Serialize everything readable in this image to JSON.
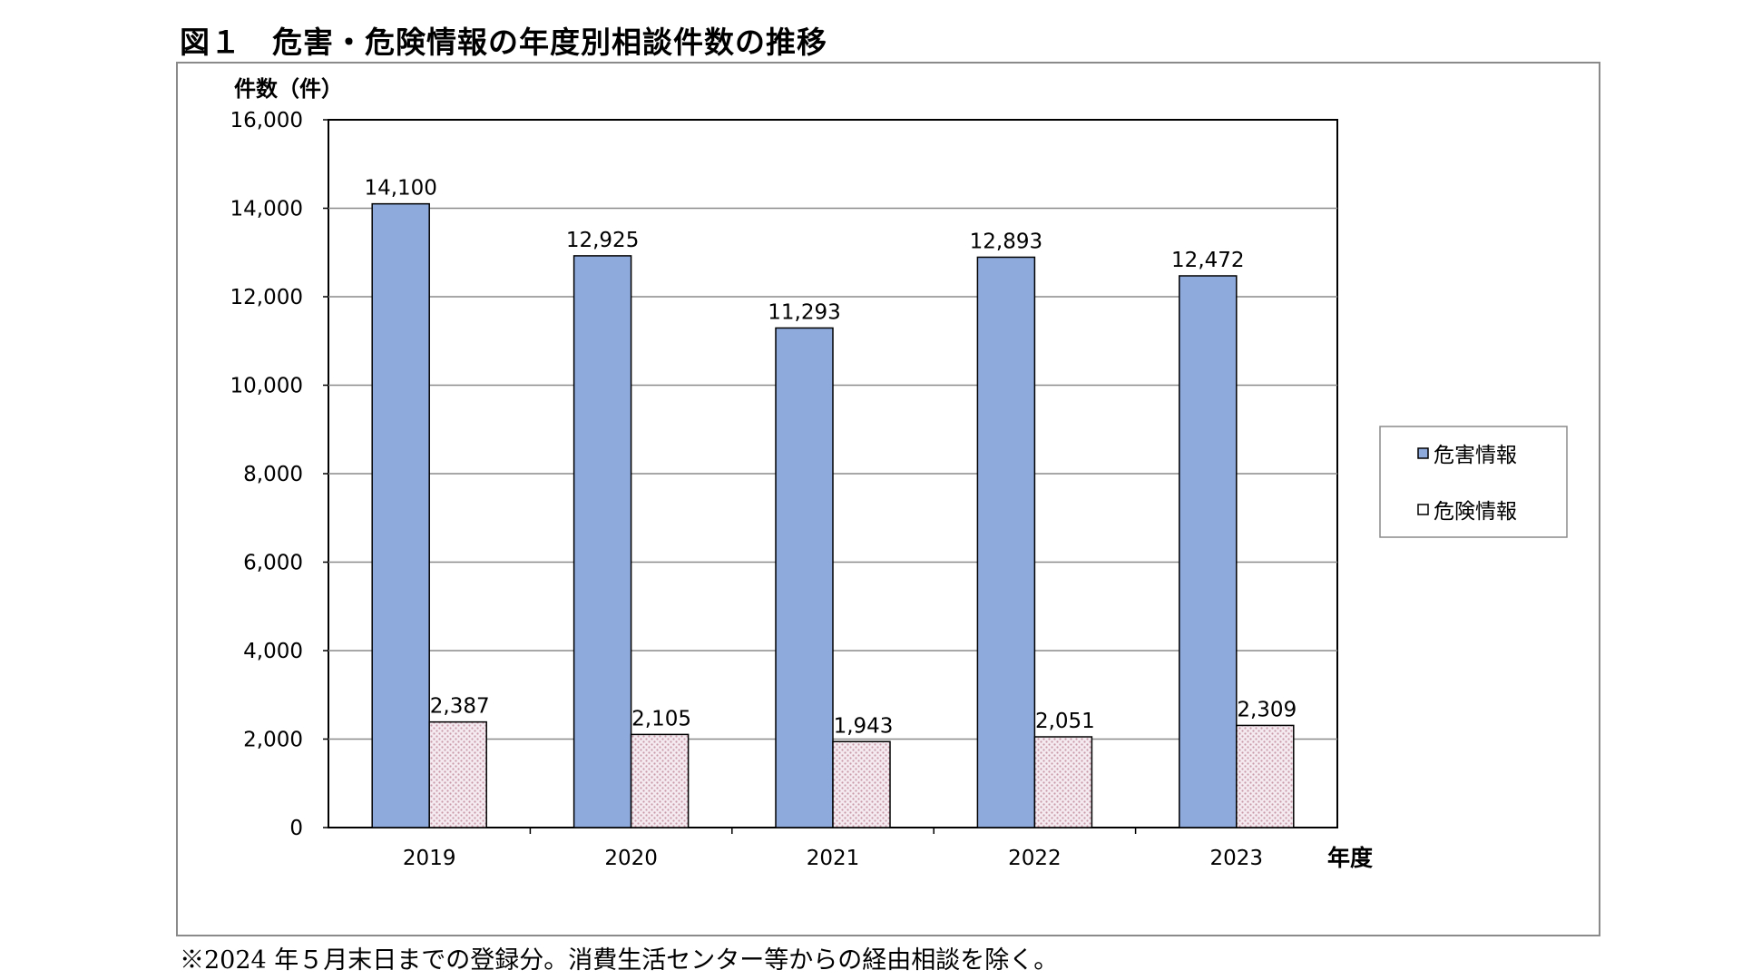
{
  "figure": {
    "title": "図１　危害・危険情報の年度別相談件数の推移",
    "footnote": "※2024 年５月末日までの登録分。消費生活センター等からの経由相談を除く。"
  },
  "colors": {
    "series_harm": "#8eaadc",
    "series_danger": "#f4eaf0",
    "series_danger_dots": "#c99aaa",
    "grid": "#8a8a8a",
    "axis": "#000000"
  },
  "chart_data": {
    "type": "bar",
    "categories": [
      "2019",
      "2020",
      "2021",
      "2022",
      "2023"
    ],
    "series": [
      {
        "name": "危害情報",
        "values": [
          14100,
          12925,
          11293,
          12893,
          12472
        ],
        "labels": [
          "14,100",
          "12,925",
          "11,293",
          "12,893",
          "12,472"
        ]
      },
      {
        "name": "危険情報",
        "values": [
          2387,
          2105,
          1943,
          2051,
          2309
        ],
        "labels": [
          "2,387",
          "2,105",
          "1,943",
          "2,051",
          "2,309"
        ]
      }
    ],
    "ylabel": "件数（件）",
    "xlabel": "年度",
    "ylim": [
      0,
      16000
    ],
    "yticks": [
      "0",
      "2,000",
      "4,000",
      "6,000",
      "8,000",
      "10,000",
      "12,000",
      "14,000",
      "16,000"
    ],
    "grid": true,
    "legend_position": "right"
  }
}
